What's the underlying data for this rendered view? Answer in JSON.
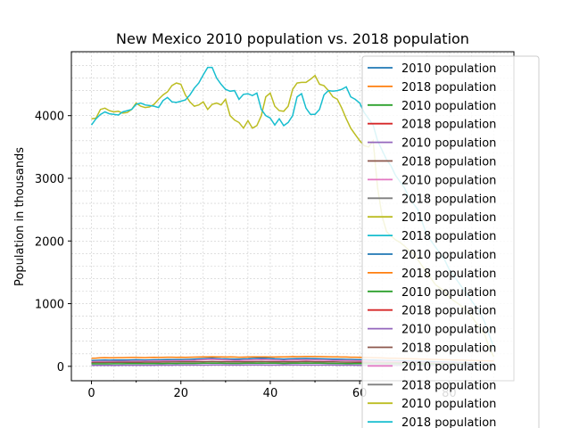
{
  "chart_data": {
    "type": "line",
    "title": "New Mexico 2010 population vs. 2018 population",
    "xlabel": "",
    "ylabel": "Population in thousands",
    "xlim": [
      -4.5,
      94.5
    ],
    "ylim": [
      -230,
      5020
    ],
    "x_ticks": [
      0,
      20,
      40,
      60,
      80
    ],
    "y_ticks": [
      0,
      1000,
      2000,
      3000,
      4000
    ],
    "grid": true,
    "legend": {
      "placement": "upper right"
    },
    "palette": [
      "#1f77b4",
      "#ff7f0e",
      "#2ca02c",
      "#d62728",
      "#9467bd",
      "#8c564b",
      "#e377c2",
      "#7f7f7f",
      "#bcbd22",
      "#17becf"
    ],
    "legend_entries": [
      "2010 population",
      "2018 population",
      "2010 population",
      "2018 population",
      "2010 population",
      "2018 population",
      "2010 population",
      "2018 population",
      "2010 population",
      "2018 population",
      "2010 population",
      "2018 population",
      "2010 population",
      "2018 population",
      "2010 population",
      "2018 population",
      "2010 population",
      "2018 population",
      "2010 population",
      "2018 population"
    ],
    "x": [
      0,
      1,
      2,
      3,
      4,
      5,
      6,
      7,
      8,
      9,
      10,
      11,
      12,
      13,
      14,
      15,
      16,
      17,
      18,
      19,
      20,
      21,
      22,
      23,
      24,
      25,
      26,
      27,
      28,
      29,
      30,
      31,
      32,
      33,
      34,
      35,
      36,
      37,
      38,
      39,
      40,
      41,
      42,
      43,
      44,
      45,
      46,
      47,
      48,
      49,
      50,
      51,
      52,
      53,
      54,
      55,
      56,
      57,
      58,
      59,
      60,
      61,
      62,
      63,
      64,
      65,
      66,
      67,
      68,
      69,
      70,
      71,
      72,
      73,
      74,
      75,
      76,
      77,
      78,
      79,
      80,
      81,
      82,
      83,
      84,
      85,
      86,
      87,
      88,
      89,
      90
    ],
    "series": [
      {
        "legend_index": 8,
        "color": "#bcbd22",
        "values": [
          3950,
          3960,
          4100,
          4120,
          4080,
          4060,
          4070,
          4040,
          4050,
          4100,
          4200,
          4150,
          4130,
          4140,
          4180,
          4260,
          4330,
          4380,
          4480,
          4520,
          4500,
          4330,
          4220,
          4150,
          4170,
          4220,
          4100,
          4180,
          4200,
          4170,
          4260,
          4000,
          3930,
          3890,
          3800,
          3920,
          3800,
          3840,
          4000,
          4300,
          4360,
          4150,
          4080,
          4070,
          4150,
          4420,
          4520,
          4530,
          4530,
          4580,
          4640,
          4500,
          4480,
          4400,
          4300,
          4260,
          4120,
          3950,
          3800,
          3700,
          3600,
          3520,
          3500,
          3600,
          2850,
          2400,
          2150,
          2080,
          2020,
          1980,
          1920,
          1850,
          1800,
          1700,
          1600,
          1500,
          1400,
          1300,
          1250,
          1200,
          1100,
          1050,
          1000,
          950,
          900,
          800,
          700,
          600,
          500,
          300,
          150
        ]
      },
      {
        "legend_index": 9,
        "color": "#17becf",
        "values": [
          3850,
          3950,
          4020,
          4060,
          4030,
          4020,
          4010,
          4060,
          4080,
          4100,
          4180,
          4200,
          4170,
          4160,
          4150,
          4130,
          4240,
          4290,
          4220,
          4210,
          4230,
          4250,
          4330,
          4440,
          4520,
          4650,
          4770,
          4770,
          4600,
          4500,
          4420,
          4390,
          4400,
          4260,
          4340,
          4350,
          4320,
          4360,
          4100,
          4000,
          3960,
          3850,
          3950,
          3840,
          3890,
          4000,
          4300,
          4350,
          4120,
          4020,
          4020,
          4100,
          4330,
          4400,
          4390,
          4400,
          4420,
          4460,
          4300,
          4260,
          4200,
          4050,
          3950,
          3850,
          3600,
          3450,
          3300,
          3200,
          3050,
          2950,
          2850,
          2700,
          2600,
          2500,
          2300,
          2100,
          2000,
          1900,
          1800,
          1700,
          1550,
          1450,
          1350,
          1250,
          1150,
          1050,
          950,
          850,
          700,
          500,
          300
        ]
      },
      {
        "legend_index": 1,
        "color": "#ff7f0e",
        "values": [
          130,
          132,
          135,
          138,
          136,
          137,
          139,
          138,
          140,
          141,
          142,
          140,
          139,
          141,
          143,
          142,
          144,
          145,
          146,
          144,
          145,
          143,
          146,
          147,
          148,
          150,
          152,
          153,
          151,
          150,
          149,
          150,
          148,
          146,
          147,
          149,
          150,
          151,
          152,
          150,
          149,
          148,
          150,
          152,
          153,
          155,
          154,
          156,
          158,
          157,
          156,
          155,
          154,
          153,
          152,
          150,
          149,
          148,
          146,
          145,
          143,
          142,
          140,
          138,
          136,
          134,
          132,
          130,
          128,
          126,
          124,
          122,
          120,
          118,
          116,
          114,
          112,
          110,
          108,
          106,
          104,
          102,
          100,
          98,
          96,
          94,
          92,
          90,
          88,
          86,
          84
        ]
      },
      {
        "legend_index": 0,
        "color": "#1f77b4",
        "values": [
          95,
          96,
          98,
          100,
          99,
          100,
          101,
          100,
          102,
          103,
          104,
          103,
          102,
          103,
          104,
          105,
          106,
          107,
          108,
          107,
          108,
          110,
          112,
          114,
          118,
          122,
          126,
          128,
          124,
          120,
          118,
          116,
          114,
          115,
          118,
          120,
          125,
          128,
          132,
          130,
          126,
          120,
          118,
          116,
          118,
          120,
          122,
          124,
          125,
          124,
          122,
          120,
          118,
          117,
          116,
          115,
          113,
          112,
          110,
          108,
          106,
          104,
          102,
          100,
          98,
          96,
          94,
          92,
          90,
          88,
          86,
          84,
          82,
          80,
          78,
          76,
          74,
          72,
          70,
          68,
          66,
          64,
          62,
          60,
          58,
          56,
          54,
          52,
          50,
          48,
          46
        ]
      },
      {
        "legend_index": 6,
        "color": "#e377c2",
        "values": [
          75,
          76,
          77,
          78,
          78,
          79,
          80,
          80,
          81,
          82,
          82,
          83,
          83,
          84,
          85,
          85,
          86,
          87,
          88,
          88,
          89,
          90,
          92,
          95,
          100,
          105,
          110,
          112,
          108,
          104,
          100,
          97,
          95,
          94,
          96,
          98,
          102,
          105,
          108,
          106,
          102,
          98,
          96,
          95,
          96,
          98,
          100,
          102,
          103,
          102,
          100,
          98,
          97,
          96,
          95,
          94,
          93,
          92,
          90,
          88,
          87,
          86,
          84,
          82,
          80,
          79,
          78,
          76,
          74,
          72,
          70,
          69,
          68,
          66,
          64,
          62,
          60,
          59,
          58,
          56,
          54,
          52,
          50,
          49,
          48,
          46,
          44,
          42,
          40,
          39,
          38
        ]
      },
      {
        "legend_index": 5,
        "color": "#8c564b",
        "values": [
          60,
          61,
          62,
          62,
          63,
          63,
          64,
          64,
          65,
          65,
          66,
          66,
          67,
          67,
          68,
          68,
          69,
          69,
          70,
          70,
          71,
          71,
          72,
          73,
          74,
          75,
          76,
          77,
          76,
          75,
          74,
          73,
          72,
          72,
          73,
          74,
          75,
          76,
          77,
          76,
          75,
          74,
          73,
          72,
          73,
          74,
          75,
          76,
          77,
          76,
          75,
          74,
          73,
          72,
          71,
          70,
          69,
          68,
          67,
          66,
          65,
          64,
          63,
          62,
          61,
          60,
          59,
          58,
          57,
          56,
          55,
          54,
          53,
          52,
          51,
          50,
          49,
          48,
          47,
          46,
          45,
          44,
          43,
          42,
          41,
          40,
          39,
          38,
          37,
          36,
          35
        ]
      },
      {
        "legend_index": 2,
        "color": "#2ca02c",
        "values": [
          40,
          40,
          41,
          41,
          41,
          42,
          42,
          42,
          43,
          43,
          43,
          44,
          44,
          44,
          45,
          45,
          45,
          46,
          46,
          46,
          47,
          47,
          48,
          48,
          49,
          50,
          51,
          52,
          51,
          50,
          49,
          48,
          48,
          48,
          49,
          50,
          51,
          52,
          53,
          52,
          51,
          50,
          49,
          48,
          49,
          50,
          51,
          52,
          53,
          52,
          51,
          50,
          49,
          48,
          47,
          46,
          46,
          45,
          45,
          44,
          44,
          43,
          43,
          42,
          42,
          41,
          41,
          40,
          40,
          39,
          39,
          38,
          38,
          37,
          37,
          36,
          36,
          35,
          35,
          34,
          34,
          33,
          33,
          32,
          32,
          31,
          31,
          30,
          30,
          29,
          29
        ]
      },
      {
        "legend_index": 4,
        "color": "#9467bd",
        "values": [
          15,
          15,
          15,
          16,
          16,
          16,
          16,
          17,
          17,
          17,
          17,
          18,
          18,
          18,
          18,
          19,
          19,
          19,
          19,
          20,
          20,
          20,
          20,
          21,
          21,
          21,
          21,
          22,
          22,
          22,
          22,
          21,
          21,
          21,
          21,
          22,
          22,
          22,
          22,
          21,
          21,
          21,
          21,
          22,
          22,
          22,
          22,
          21,
          21,
          21,
          21,
          20,
          20,
          20,
          20,
          19,
          19,
          19,
          19,
          18,
          18,
          18,
          18,
          17,
          17,
          17,
          17,
          16,
          16,
          16,
          16,
          15,
          15,
          15,
          15,
          14,
          14,
          14,
          14,
          13,
          13,
          13,
          13,
          12,
          12,
          12,
          12,
          11,
          11,
          11,
          11
        ]
      }
    ]
  }
}
